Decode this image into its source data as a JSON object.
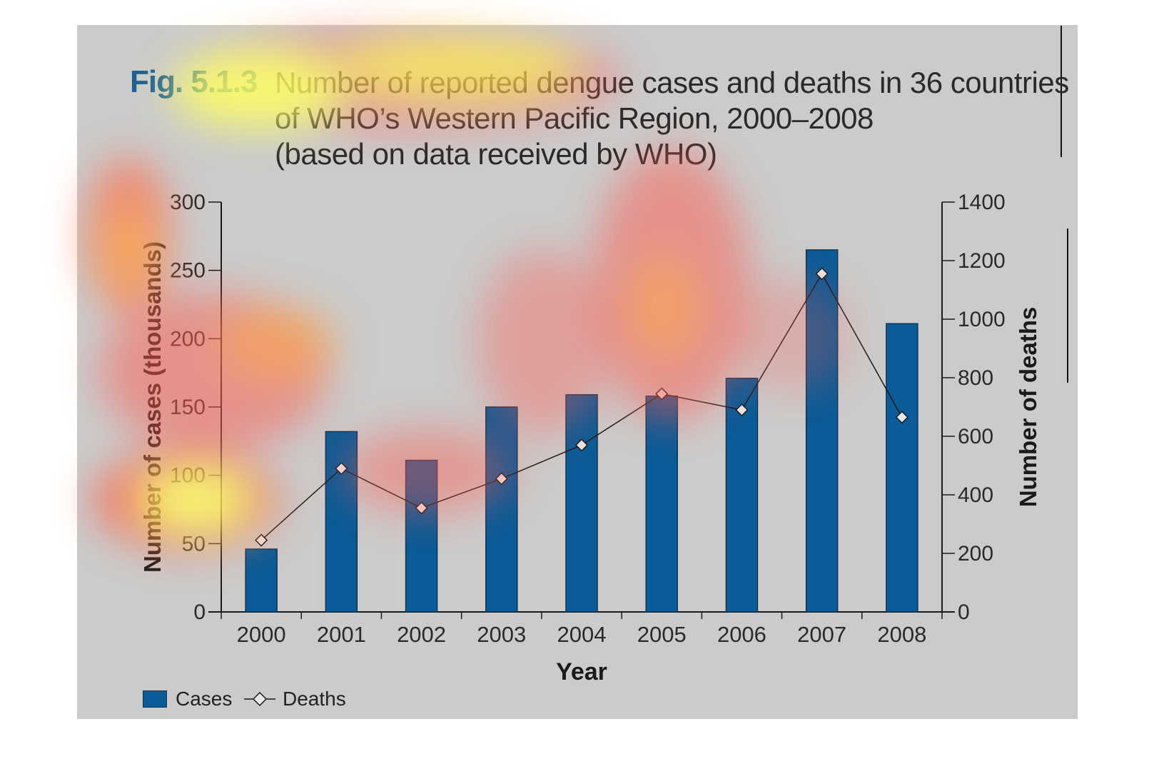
{
  "figure": {
    "label": "Fig. 5.1.3",
    "title_lines": [
      "Number of reported dengue cases and deaths in 36 countries",
      "of WHO’s Western Pacific Region, 2000–2008",
      "(based on data received by WHO)"
    ]
  },
  "chart_data": {
    "type": "bar",
    "categories": [
      "2000",
      "2001",
      "2002",
      "2003",
      "2004",
      "2005",
      "2006",
      "2007",
      "2008"
    ],
    "series": [
      {
        "name": "Cases",
        "type": "bar",
        "axis": "left",
        "values": [
          46,
          132,
          111,
          150,
          159,
          158,
          171,
          265,
          211
        ]
      },
      {
        "name": "Deaths",
        "type": "line",
        "axis": "right",
        "marker": "diamond",
        "values": [
          245,
          490,
          355,
          455,
          570,
          745,
          690,
          1155,
          665
        ]
      }
    ],
    "xlabel": "Year",
    "ylabel": "Number of cases (thousands)",
    "y2label": "Number of deaths",
    "ylim": [
      0,
      300
    ],
    "yticks": [
      "0",
      "50",
      "100",
      "150",
      "200",
      "250",
      "300"
    ],
    "y2lim": [
      0,
      1400
    ],
    "y2ticks": [
      "0",
      "200",
      "400",
      "600",
      "800",
      "1000",
      "1200",
      "1400"
    ],
    "grid": false,
    "legend": "bottom-left",
    "colors": {
      "bar": "#0a5b97",
      "bar_edge": "#13334f",
      "line": "#1a1a1a",
      "marker_fill": "#e8e8e8",
      "panel": "#cbcbcb"
    },
    "overlay": "attention heatmap"
  }
}
